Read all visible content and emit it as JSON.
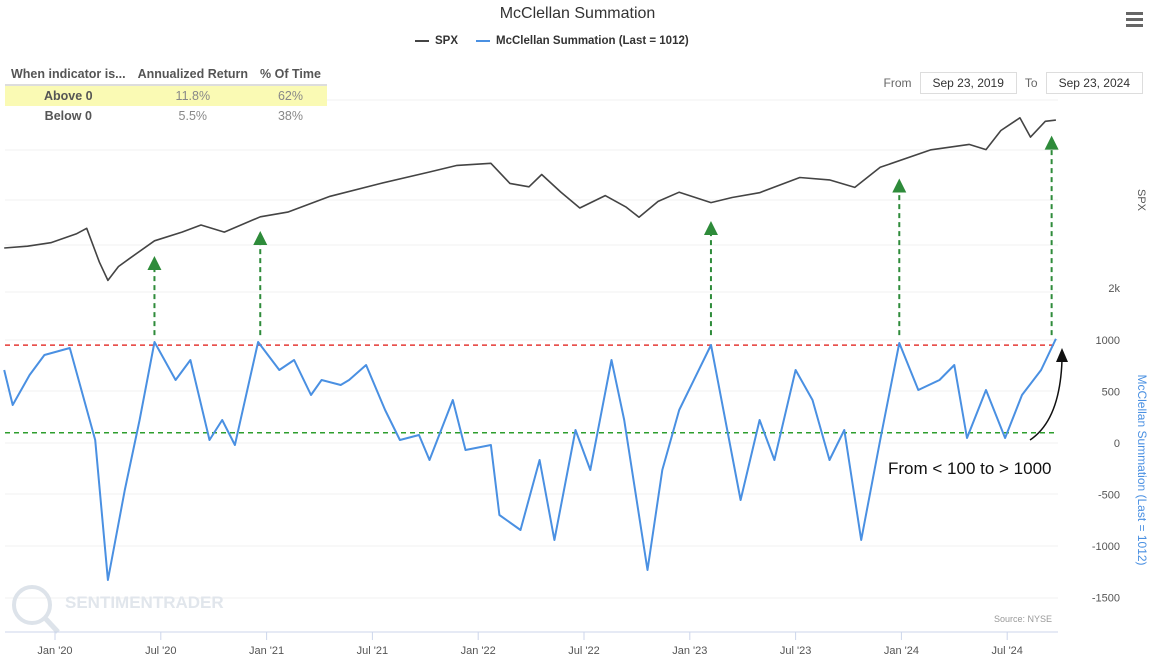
{
  "header": {
    "title": "McClellan Summation",
    "menu_icon": "hamburger-icon"
  },
  "legend": [
    {
      "label": "SPX",
      "color": "#444444"
    },
    {
      "label": "McClellan Summation (Last = 1012)",
      "color": "#4a90e2"
    }
  ],
  "stats_table": {
    "headers": [
      "When indicator is...",
      "Annualized Return",
      "% Of Time"
    ],
    "rows": [
      {
        "label": "Above 0",
        "return": "11.8%",
        "time": "62%"
      },
      {
        "label": "Below 0",
        "return": "5.5%",
        "time": "38%"
      }
    ]
  },
  "range": {
    "from_label": "From",
    "from": "Sep 23, 2019",
    "to_label": "To",
    "to": "Sep 23, 2024"
  },
  "source": "Source: NYSE",
  "watermark": "SENTIMENTRADER",
  "annotation": "From < 100 to > 1000",
  "chart_data": {
    "type": "line",
    "title": "McClellan Summation",
    "x_ticks": [
      "Jan '20",
      "Jul '20",
      "Jan '21",
      "Jul '21",
      "Jan '22",
      "Jul '22",
      "Jan '23",
      "Jul '23",
      "Jan '24",
      "Jul '24"
    ],
    "x_tick_years": [
      2020,
      2020.5,
      2021,
      2021.5,
      2022,
      2022.5,
      2023,
      2023.5,
      2024,
      2024.5
    ],
    "spx_axis": {
      "label": "SPX",
      "ticks": [
        {
          "v": 2000,
          "label": "2k"
        }
      ]
    },
    "mcc_axis": {
      "label": "McClellan Summation (Last = 1012)",
      "ticks": [
        1000,
        500,
        0,
        -500,
        -1000,
        -1500
      ],
      "range": [
        -1500,
        1000
      ]
    },
    "reference_lines": [
      {
        "value": 950,
        "color": "#e53935"
      },
      {
        "value": 100,
        "color": "#2e9e2e"
      }
    ],
    "signal_dates": [
      2020.47,
      2020.97,
      2023.1,
      2023.99,
      2024.71
    ],
    "series": [
      {
        "name": "SPX",
        "color": "#444444",
        "points": [
          [
            2019.76,
            2990
          ],
          [
            2019.87,
            3080
          ],
          [
            2019.98,
            3157
          ],
          [
            2020.1,
            3290
          ],
          [
            2020.15,
            3350
          ],
          [
            2020.21,
            2636
          ],
          [
            2020.25,
            2303
          ],
          [
            2020.3,
            2650
          ],
          [
            2020.35,
            2824
          ],
          [
            2020.47,
            3157
          ],
          [
            2020.6,
            3280
          ],
          [
            2020.69,
            3407
          ],
          [
            2020.8,
            3300
          ],
          [
            2020.97,
            3678
          ],
          [
            2021.1,
            3800
          ],
          [
            2021.3,
            4095
          ],
          [
            2021.54,
            4304
          ],
          [
            2021.77,
            4512
          ],
          [
            2021.9,
            4680
          ],
          [
            2022.06,
            4783
          ],
          [
            2022.15,
            4400
          ],
          [
            2022.24,
            4304
          ],
          [
            2022.3,
            4500
          ],
          [
            2022.39,
            4095
          ],
          [
            2022.48,
            3783
          ],
          [
            2022.6,
            4100
          ],
          [
            2022.7,
            3900
          ],
          [
            2022.76,
            3678
          ],
          [
            2022.85,
            3950
          ],
          [
            2022.95,
            4095
          ],
          [
            2023.1,
            3887
          ],
          [
            2023.2,
            4050
          ],
          [
            2023.33,
            4199
          ],
          [
            2023.52,
            4512
          ],
          [
            2023.66,
            4408
          ],
          [
            2023.78,
            4199
          ],
          [
            2023.9,
            4616
          ],
          [
            2024.14,
            5033
          ],
          [
            2024.32,
            5200
          ],
          [
            2024.4,
            5100
          ],
          [
            2024.47,
            5450
          ],
          [
            2024.56,
            5658
          ],
          [
            2024.61,
            5241
          ],
          [
            2024.68,
            5616
          ],
          [
            2024.73,
            5700
          ]
        ]
      },
      {
        "name": "McClellan Summation",
        "color": "#4a90e2",
        "points": [
          [
            2019.76,
            709
          ],
          [
            2019.8,
            369
          ],
          [
            2019.88,
            660
          ],
          [
            2019.95,
            854
          ],
          [
            2020.07,
            922
          ],
          [
            2020.19,
            29
          ],
          [
            2020.25,
            -1330
          ],
          [
            2020.33,
            -456
          ],
          [
            2020.4,
            223
          ],
          [
            2020.47,
            981
          ],
          [
            2020.57,
            612
          ],
          [
            2020.64,
            806
          ],
          [
            2020.73,
            29
          ],
          [
            2020.79,
            223
          ],
          [
            2020.85,
            -19
          ],
          [
            2020.96,
            981
          ],
          [
            2021.06,
            709
          ],
          [
            2021.13,
            806
          ],
          [
            2021.21,
            466
          ],
          [
            2021.26,
            612
          ],
          [
            2021.35,
            563
          ],
          [
            2021.39,
            612
          ],
          [
            2021.47,
            757
          ],
          [
            2021.56,
            320
          ],
          [
            2021.63,
            29
          ],
          [
            2021.72,
            78
          ],
          [
            2021.77,
            -165
          ],
          [
            2021.88,
            417
          ],
          [
            2021.94,
            -68
          ],
          [
            2022.06,
            -19
          ],
          [
            2022.1,
            -699
          ],
          [
            2022.2,
            -845
          ],
          [
            2022.29,
            -165
          ],
          [
            2022.36,
            -942
          ],
          [
            2022.46,
            126
          ],
          [
            2022.53,
            -262
          ],
          [
            2022.63,
            806
          ],
          [
            2022.69,
            223
          ],
          [
            2022.8,
            -1233
          ],
          [
            2022.87,
            -262
          ],
          [
            2022.95,
            320
          ],
          [
            2023.1,
            951
          ],
          [
            2023.24,
            -553
          ],
          [
            2023.33,
            223
          ],
          [
            2023.4,
            -165
          ],
          [
            2023.5,
            709
          ],
          [
            2023.58,
            417
          ],
          [
            2023.66,
            -165
          ],
          [
            2023.73,
            126
          ],
          [
            2023.81,
            -942
          ],
          [
            2023.9,
            29
          ],
          [
            2023.99,
            971
          ],
          [
            2024.08,
            515
          ],
          [
            2024.18,
            612
          ],
          [
            2024.25,
            757
          ],
          [
            2024.31,
            49
          ],
          [
            2024.4,
            515
          ],
          [
            2024.49,
            49
          ],
          [
            2024.57,
            466
          ],
          [
            2024.66,
            709
          ],
          [
            2024.73,
            1012
          ]
        ]
      }
    ]
  }
}
